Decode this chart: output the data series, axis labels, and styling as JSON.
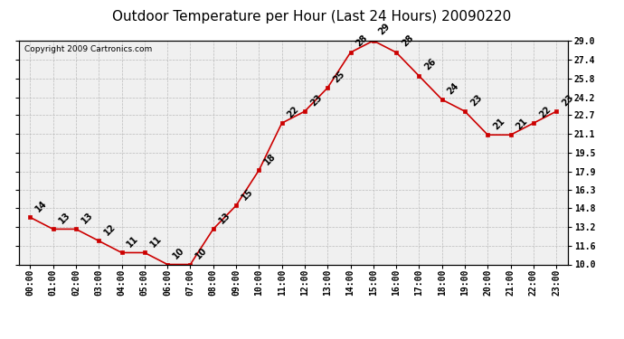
{
  "title": "Outdoor Temperature per Hour (Last 24 Hours) 20090220",
  "copyright": "Copyright 2009 Cartronics.com",
  "hours": [
    "00:00",
    "01:00",
    "02:00",
    "03:00",
    "04:00",
    "05:00",
    "06:00",
    "07:00",
    "08:00",
    "09:00",
    "10:00",
    "11:00",
    "12:00",
    "13:00",
    "14:00",
    "15:00",
    "16:00",
    "17:00",
    "18:00",
    "19:00",
    "20:00",
    "21:00",
    "22:00",
    "23:00"
  ],
  "values": [
    14,
    13,
    13,
    12,
    11,
    11,
    10,
    10,
    13,
    15,
    18,
    22,
    23,
    25,
    28,
    29,
    28,
    26,
    24,
    23,
    21,
    21,
    22,
    23
  ],
  "ylim": [
    10.0,
    29.0
  ],
  "yticks": [
    10.0,
    11.6,
    13.2,
    14.8,
    16.3,
    17.9,
    19.5,
    21.1,
    22.7,
    24.2,
    25.8,
    27.4,
    29.0
  ],
  "line_color": "#cc0000",
  "marker_color": "#cc0000",
  "bg_color": "#ffffff",
  "plot_bg_color": "#f0f0f0",
  "grid_color": "#bbbbbb",
  "title_fontsize": 11,
  "tick_fontsize": 7,
  "annotation_fontsize": 7,
  "copyright_fontsize": 6.5
}
